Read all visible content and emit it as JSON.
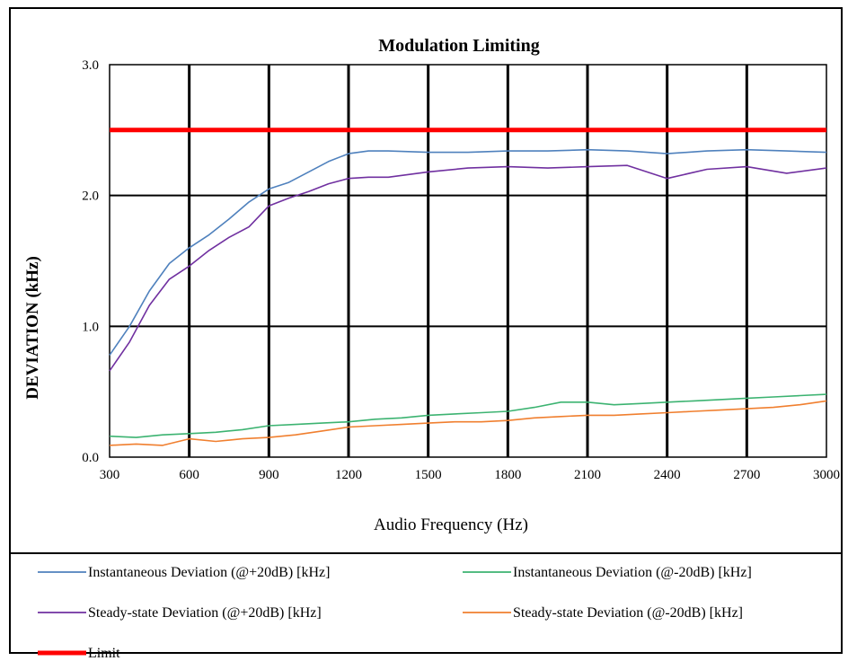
{
  "chart_data": {
    "type": "line",
    "title": "Modulation Limiting",
    "xlabel": "Audio Frequency (Hz)",
    "ylabel": "DEVIATION (kHz)",
    "xlim": [
      300,
      3000
    ],
    "ylim": [
      0,
      3
    ],
    "x_ticks": [
      "300",
      "600",
      "900",
      "1200",
      "1500",
      "1800",
      "2100",
      "2400",
      "2700",
      "3000"
    ],
    "y_ticks": [
      "0.0",
      "1.0",
      "2.0",
      "3.0"
    ],
    "grid": true,
    "legend_position": "bottom",
    "series": [
      {
        "name": "Instantaneous Deviation (@+20dB) [kHz]",
        "color": "#4f81bd",
        "x": [
          300,
          375,
          450,
          525,
          600,
          675,
          750,
          825,
          900,
          975,
          1050,
          1125,
          1200,
          1275,
          1350,
          1500,
          1650,
          1800,
          1950,
          2100,
          2250,
          2400,
          2550,
          2700,
          2850,
          3000
        ],
        "y": [
          0.78,
          1.0,
          1.27,
          1.48,
          1.6,
          1.7,
          1.82,
          1.95,
          2.05,
          2.1,
          2.18,
          2.26,
          2.32,
          2.34,
          2.34,
          2.33,
          2.33,
          2.34,
          2.34,
          2.35,
          2.34,
          2.32,
          2.34,
          2.35,
          2.34,
          2.33
        ]
      },
      {
        "name": "Instantaneous Deviation (@-20dB) [kHz]",
        "color": "#3cb371",
        "x": [
          300,
          400,
          500,
          600,
          700,
          800,
          900,
          1000,
          1100,
          1200,
          1300,
          1400,
          1500,
          1600,
          1700,
          1800,
          1900,
          2000,
          2100,
          2200,
          2300,
          2400,
          2500,
          2600,
          2700,
          2800,
          2900,
          3000
        ],
        "y": [
          0.16,
          0.15,
          0.17,
          0.18,
          0.19,
          0.21,
          0.24,
          0.25,
          0.26,
          0.27,
          0.29,
          0.3,
          0.32,
          0.33,
          0.34,
          0.35,
          0.38,
          0.42,
          0.42,
          0.4,
          0.41,
          0.42,
          0.43,
          0.44,
          0.45,
          0.46,
          0.47,
          0.48
        ]
      },
      {
        "name": "Steady-state Deviation (@+20dB) [kHz]",
        "color": "#7030a0",
        "x": [
          300,
          375,
          450,
          525,
          600,
          675,
          750,
          825,
          900,
          975,
          1050,
          1125,
          1200,
          1275,
          1350,
          1500,
          1650,
          1800,
          1950,
          2100,
          2250,
          2400,
          2550,
          2700,
          2850,
          3000
        ],
        "y": [
          0.66,
          0.88,
          1.16,
          1.36,
          1.46,
          1.58,
          1.68,
          1.76,
          1.92,
          1.98,
          2.03,
          2.09,
          2.13,
          2.14,
          2.14,
          2.18,
          2.21,
          2.22,
          2.21,
          2.22,
          2.23,
          2.13,
          2.2,
          2.22,
          2.17,
          2.21
        ]
      },
      {
        "name": "Steady-state Deviation (@-20dB) [kHz]",
        "color": "#f07f2f",
        "x": [
          300,
          400,
          500,
          600,
          700,
          800,
          900,
          1000,
          1100,
          1200,
          1300,
          1400,
          1500,
          1600,
          1700,
          1800,
          1900,
          2000,
          2100,
          2200,
          2300,
          2400,
          2500,
          2600,
          2700,
          2800,
          2900,
          3000
        ],
        "y": [
          0.09,
          0.1,
          0.09,
          0.14,
          0.12,
          0.14,
          0.15,
          0.17,
          0.2,
          0.23,
          0.24,
          0.25,
          0.26,
          0.27,
          0.27,
          0.28,
          0.3,
          0.31,
          0.32,
          0.32,
          0.33,
          0.34,
          0.35,
          0.36,
          0.37,
          0.38,
          0.4,
          0.43
        ]
      },
      {
        "name": "Limit",
        "color": "#ff0000",
        "x": [
          300,
          3000
        ],
        "y": [
          2.5,
          2.5
        ]
      }
    ]
  }
}
